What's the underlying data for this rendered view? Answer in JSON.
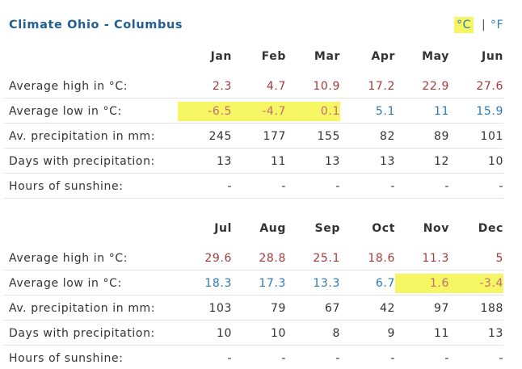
{
  "header": {
    "title": "Climate Ohio - Columbus",
    "unit_c": "°C",
    "separator": "|",
    "unit_f": "°F"
  },
  "tables": [
    {
      "months": [
        "Jan",
        "Feb",
        "Mar",
        "Apr",
        "May",
        "Jun"
      ],
      "rows": [
        {
          "label": "Average high in °C:",
          "values": [
            2.3,
            4.7,
            10.9,
            17.2,
            22.9,
            27.6
          ]
        },
        {
          "label": "Average low in °C:",
          "values": [
            -6.5,
            -4.7,
            0.1,
            5.1,
            11,
            15.9
          ]
        },
        {
          "label": "Av. precipitation in mm:",
          "values": [
            245,
            177,
            155,
            82,
            89,
            101
          ]
        },
        {
          "label": "Days with precipitation:",
          "values": [
            13,
            11,
            13,
            13,
            12,
            10
          ]
        },
        {
          "label": "Hours of sunshine:",
          "values": [
            "-",
            "-",
            "-",
            "-",
            "-",
            "-"
          ]
        }
      ]
    },
    {
      "months": [
        "Jul",
        "Aug",
        "Sep",
        "Oct",
        "Nov",
        "Dec"
      ],
      "rows": [
        {
          "label": "Average high in °C:",
          "values": [
            29.6,
            28.8,
            25.1,
            18.6,
            11.3,
            5
          ]
        },
        {
          "label": "Average low in °C:",
          "values": [
            18.3,
            17.3,
            13.3,
            6.7,
            1.6,
            -3.4
          ]
        },
        {
          "label": "Av. precipitation in mm:",
          "values": [
            103,
            79,
            67,
            42,
            97,
            188
          ]
        },
        {
          "label": "Days with precipitation:",
          "values": [
            10,
            10,
            8,
            9,
            11,
            13
          ]
        },
        {
          "label": "Hours of sunshine:",
          "values": [
            "-",
            "-",
            "-",
            "-",
            "-",
            "-"
          ]
        }
      ]
    }
  ]
}
